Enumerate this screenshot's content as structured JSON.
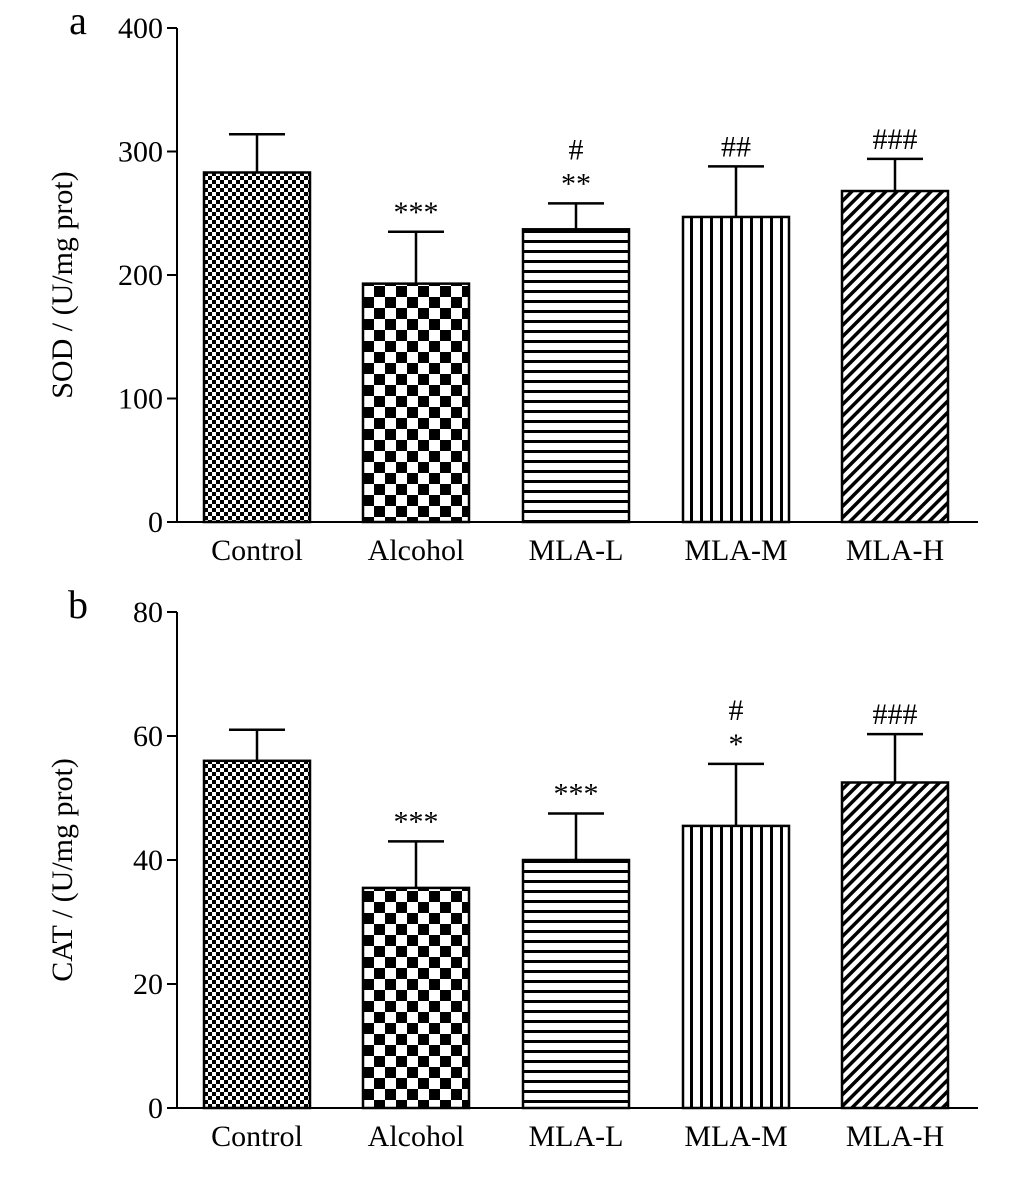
{
  "chart_data": [
    {
      "type": "bar",
      "panel_label": "a",
      "ylabel": "SOD / (U/mg prot)",
      "xlabel": "",
      "ylim": [
        0,
        400
      ],
      "yticks": [
        0,
        100,
        200,
        300,
        400
      ],
      "categories": [
        "Control",
        "Alcohol",
        "MLA-L",
        "MLA-M",
        "MLA-H"
      ],
      "values": [
        283,
        193,
        237,
        247,
        268
      ],
      "errors": [
        31,
        42,
        21,
        41,
        26
      ],
      "annotations": [
        {
          "category": "Control",
          "lines": []
        },
        {
          "category": "Alcohol",
          "lines": [
            "***"
          ]
        },
        {
          "category": "MLA-L",
          "lines": [
            "#",
            "**"
          ]
        },
        {
          "category": "MLA-M",
          "lines": [
            "##"
          ]
        },
        {
          "category": "MLA-H",
          "lines": [
            "###"
          ]
        }
      ],
      "fills": [
        "fine-check",
        "checkerboard",
        "horizontal-stripes",
        "vertical-stripes",
        "diagonal-stripes"
      ]
    },
    {
      "type": "bar",
      "panel_label": "b",
      "ylabel": "CAT / (U/mg prot)",
      "xlabel": "",
      "ylim": [
        0,
        80
      ],
      "yticks": [
        0,
        20,
        40,
        60,
        80
      ],
      "categories": [
        "Control",
        "Alcohol",
        "MLA-L",
        "MLA-M",
        "MLA-H"
      ],
      "values": [
        56,
        35.5,
        40,
        45.5,
        52.5
      ],
      "errors": [
        5,
        7.5,
        7.5,
        10,
        7.8
      ],
      "annotations": [
        {
          "category": "Control",
          "lines": []
        },
        {
          "category": "Alcohol",
          "lines": [
            "***"
          ]
        },
        {
          "category": "MLA-L",
          "lines": [
            "***"
          ]
        },
        {
          "category": "MLA-M",
          "lines": [
            "#",
            "*"
          ]
        },
        {
          "category": "MLA-H",
          "lines": [
            "###"
          ]
        }
      ],
      "fills": [
        "fine-check",
        "checkerboard",
        "horizontal-stripes",
        "vertical-stripes",
        "diagonal-stripes"
      ]
    }
  ]
}
